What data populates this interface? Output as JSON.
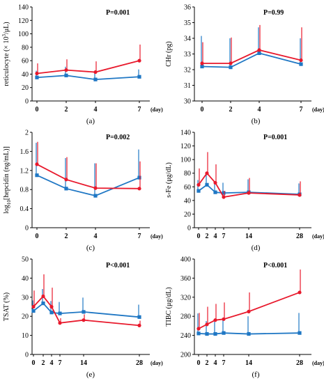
{
  "colors": {
    "red": "#e8192c",
    "blue": "#1f77c4"
  },
  "day_unit": "(day)",
  "chart_data": [
    {
      "type": "line",
      "caption": "(a)",
      "pvalue": "P=0.001",
      "ylabel_main": "reticulocyte (× 10",
      "ylabel_sup": "3",
      "ylabel_tail": "/μL)",
      "x": [
        0,
        2,
        4,
        7
      ],
      "xticks": [
        0,
        2,
        4,
        7
      ],
      "ylim": [
        0,
        140
      ],
      "yticks": [
        0,
        20,
        40,
        60,
        80,
        100,
        120,
        140
      ],
      "ytick_labels": [
        "0",
        "20",
        "40",
        "60",
        "80",
        "100",
        "120",
        "140"
      ],
      "series": [
        {
          "color": "red",
          "marker": "circle",
          "values": [
            41,
            46,
            43,
            60
          ],
          "err": [
            15,
            16,
            16,
            24
          ]
        },
        {
          "color": "blue",
          "marker": "square",
          "values": [
            35,
            38,
            32,
            36
          ],
          "err": [
            10,
            13,
            9,
            11
          ]
        }
      ]
    },
    {
      "type": "line",
      "caption": "(b)",
      "pvalue": "P=0.99",
      "ylabel_main": "CHr (pg)",
      "x": [
        0,
        2,
        4,
        7
      ],
      "xticks": [
        0,
        2,
        4,
        7
      ],
      "ylim": [
        30,
        36
      ],
      "yticks": [
        30,
        31,
        32,
        33,
        34,
        35,
        36
      ],
      "ytick_labels": [
        "30",
        "31",
        "32",
        "33",
        "34",
        "35",
        "36"
      ],
      "series": [
        {
          "color": "red",
          "marker": "circle",
          "values": [
            32.4,
            32.4,
            33.25,
            32.6
          ],
          "err": [
            1.35,
            1.65,
            1.6,
            2.1
          ]
        },
        {
          "color": "blue",
          "marker": "square",
          "values": [
            32.2,
            32.15,
            33.05,
            32.35
          ],
          "err": [
            1.95,
            1.85,
            1.65,
            1.65
          ]
        }
      ]
    },
    {
      "type": "line",
      "caption": "(c)",
      "pvalue": "P=0.002",
      "ylabel_main": "log",
      "ylabel_sub": "10",
      "ylabel_tail": "[hepcidin (ng/mL)]",
      "x": [
        0,
        2,
        4,
        7
      ],
      "xticks": [
        0,
        2,
        4,
        7
      ],
      "ylim": [
        0,
        2
      ],
      "yticks": [
        0,
        0.4,
        0.8,
        1.2,
        1.6,
        2.0
      ],
      "ytick_labels": [
        "0",
        "0.4",
        "0.8",
        "1.2",
        "1.6",
        "2"
      ],
      "series": [
        {
          "color": "red",
          "marker": "circle",
          "values": [
            1.33,
            1.01,
            0.83,
            0.82
          ],
          "err": [
            0.47,
            0.47,
            0.52,
            0.57
          ]
        },
        {
          "color": "blue",
          "marker": "square",
          "values": [
            1.1,
            0.82,
            0.67,
            1.05
          ],
          "err": [
            0.68,
            0.64,
            0.68,
            0.59
          ]
        }
      ]
    },
    {
      "type": "line",
      "caption": "(d)",
      "pvalue": "P=0.001",
      "ylabel_main": "s-Fe (μg/dL)",
      "x": [
        0,
        2,
        4,
        7,
        14,
        28
      ],
      "xticks": [
        0,
        2,
        4,
        7,
        14,
        28
      ],
      "ylim": [
        0,
        140
      ],
      "yticks": [
        0,
        20,
        40,
        60,
        80,
        100,
        120,
        140
      ],
      "ytick_labels": [
        "0",
        "20",
        "40",
        "60",
        "80",
        "100",
        "120",
        "140"
      ],
      "series": [
        {
          "color": "red",
          "marker": "circle",
          "values": [
            63,
            80,
            66,
            45,
            51,
            48
          ],
          "err": [
            24,
            31,
            27,
            9,
            22,
            20
          ]
        },
        {
          "color": "blue",
          "marker": "square",
          "values": [
            54,
            63,
            52,
            51,
            52,
            49
          ],
          "err": [
            16,
            17,
            15,
            15,
            19,
            16
          ]
        }
      ]
    },
    {
      "type": "line",
      "caption": "(e)",
      "pvalue": "P<0.001",
      "ylabel_main": "TSAT (%)",
      "x": [
        0,
        2,
        4,
        7,
        14,
        28
      ],
      "xticks": [
        0,
        2,
        4,
        7,
        14,
        28
      ],
      "ylim": [
        0,
        50
      ],
      "yticks": [
        0,
        10,
        20,
        30,
        40,
        50
      ],
      "ytick_labels": [
        "0",
        "10",
        "20",
        "30",
        "40",
        "50"
      ],
      "series": [
        {
          "color": "red",
          "marker": "circle",
          "values": [
            25,
            30.5,
            25,
            16.5,
            18,
            15.2
          ],
          "err": [
            8.5,
            11.5,
            10,
            2.5,
            3,
            2.5
          ]
        },
        {
          "color": "blue",
          "marker": "square",
          "values": [
            22.8,
            26.8,
            22,
            21.5,
            22.3,
            19.6
          ],
          "err": [
            5.5,
            7.5,
            6,
            6,
            7.5,
            6.5
          ]
        }
      ]
    },
    {
      "type": "line",
      "caption": "(f)",
      "pvalue": "P<0.001",
      "ylabel_main": "TIBC (μg/dL)",
      "x": [
        0,
        2,
        4,
        7,
        14,
        28
      ],
      "xticks": [
        0,
        2,
        4,
        7,
        14,
        28
      ],
      "ylim": [
        200,
        400
      ],
      "yticks": [
        200,
        240,
        280,
        320,
        360,
        400
      ],
      "ytick_labels": [
        "200",
        "240",
        "280",
        "320",
        "360",
        "400"
      ],
      "series": [
        {
          "color": "red",
          "marker": "circle",
          "values": [
            254,
            263,
            272,
            274,
            290,
            330
          ],
          "err": [
            33,
            37,
            34,
            35,
            40,
            48
          ]
        },
        {
          "color": "blue",
          "marker": "square",
          "values": [
            244,
            243,
            243,
            245,
            243,
            245
          ],
          "err": [
            42,
            27,
            30,
            30,
            37,
            42
          ]
        }
      ]
    }
  ]
}
